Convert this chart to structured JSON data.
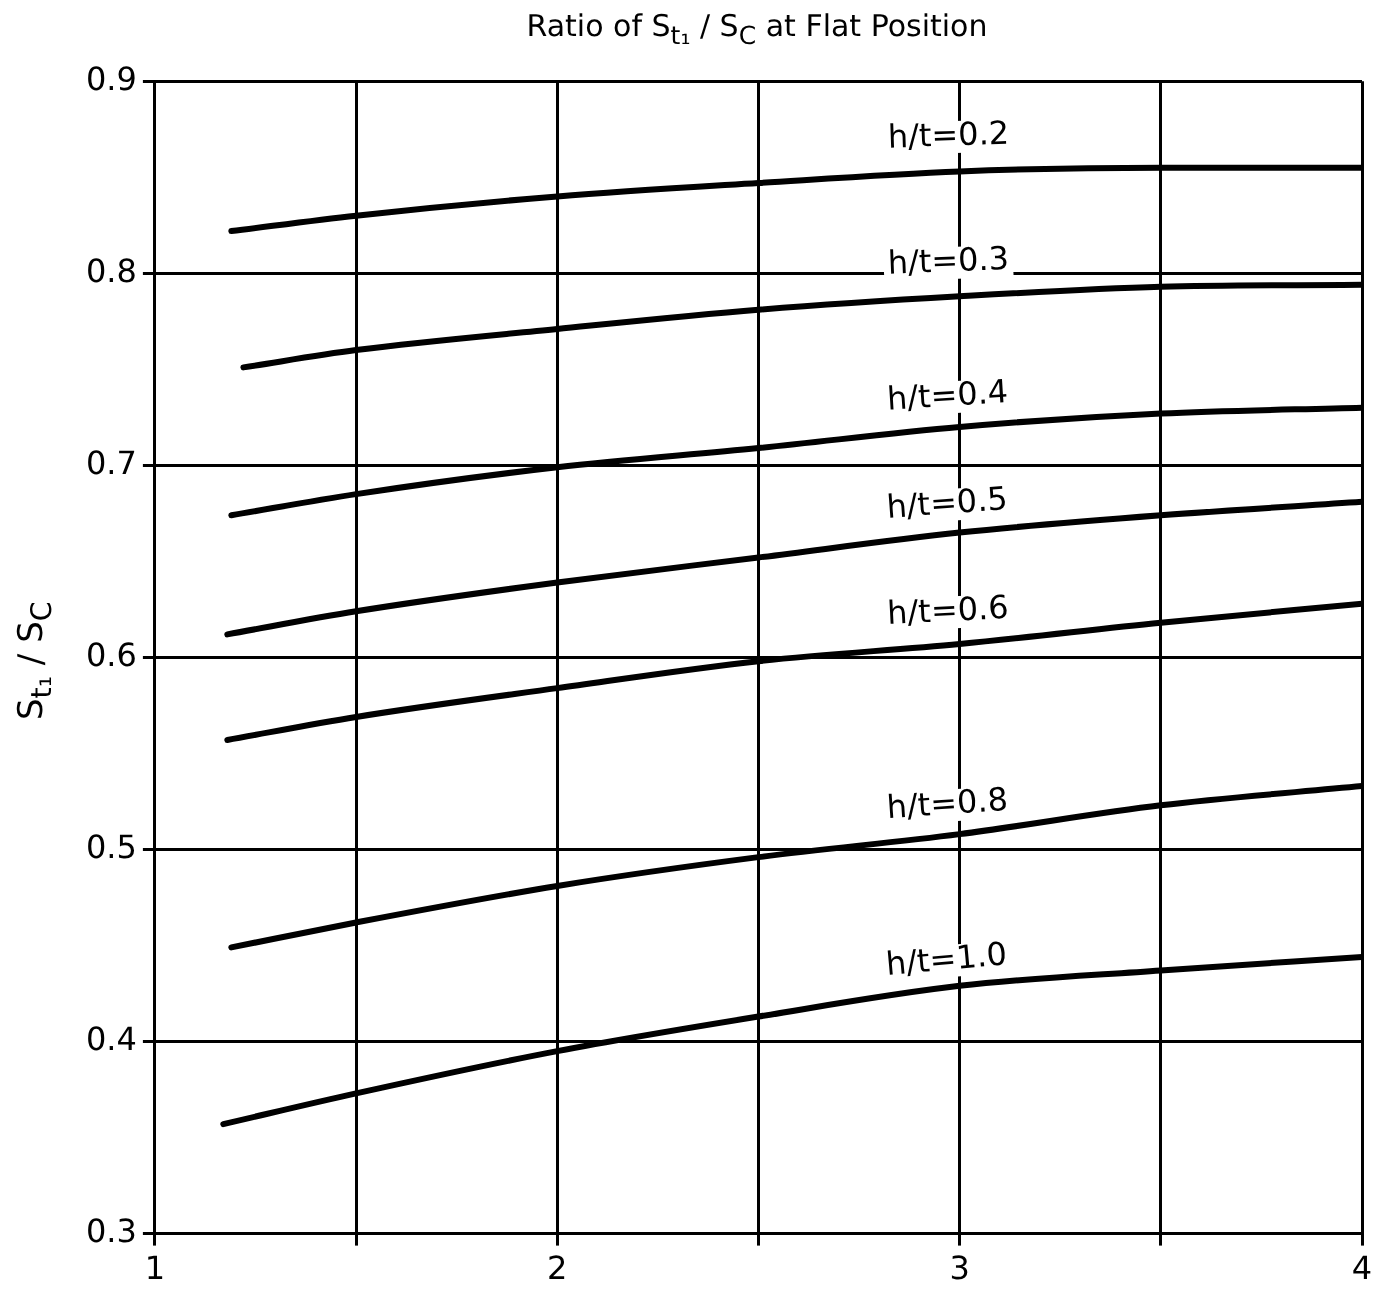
{
  "chart_data": {
    "type": "line",
    "title": "Ratio of S$_{t₁}$ / S$_{C}$  at Flat Position",
    "ylabel": "S$_{t₁}$ / S$_{C}$",
    "xlim": [
      1,
      4
    ],
    "ylim": [
      0.3,
      0.9
    ],
    "xticks": [
      1,
      {
        "value": 1.5,
        "label": null
      },
      2,
      {
        "value": 2.5,
        "label": null
      },
      3,
      {
        "value": 3.5,
        "label": null
      },
      4
    ],
    "yticks": [
      0.3,
      0.4,
      0.5,
      0.6,
      0.7,
      0.8,
      0.9
    ],
    "grid": true,
    "legend": false,
    "marker": "none",
    "line_style": "solid",
    "series": [
      {
        "name": "h/t=0.2",
        "color": "#000000",
        "x": [
          1.19,
          1.5,
          2,
          2.5,
          3,
          3.5,
          4
        ],
        "values": [
          0.822,
          0.83,
          0.84,
          0.847,
          0.853,
          0.855,
          0.855
        ]
      },
      {
        "name": "h/t=0.3",
        "color": "#000000",
        "x": [
          1.22,
          1.5,
          2,
          2.5,
          3,
          3.5,
          4
        ],
        "values": [
          0.751,
          0.76,
          0.771,
          0.781,
          0.788,
          0.793,
          0.794
        ]
      },
      {
        "name": "h/t=0.4",
        "color": "#000000",
        "x": [
          1.19,
          1.5,
          2,
          2.5,
          3,
          3.5,
          4
        ],
        "values": [
          0.674,
          0.685,
          0.699,
          0.709,
          0.72,
          0.727,
          0.73
        ]
      },
      {
        "name": "h/t=0.5",
        "color": "#000000",
        "x": [
          1.18,
          1.5,
          2,
          2.5,
          3,
          3.5,
          4
        ],
        "values": [
          0.612,
          0.624,
          0.639,
          0.652,
          0.665,
          0.674,
          0.681
        ]
      },
      {
        "name": "h/t=0.6",
        "color": "#000000",
        "x": [
          1.18,
          1.5,
          2,
          2.5,
          3,
          3.5,
          4
        ],
        "values": [
          0.557,
          0.569,
          0.584,
          0.598,
          0.607,
          0.618,
          0.628
        ]
      },
      {
        "name": "h/t=0.8",
        "color": "#000000",
        "x": [
          1.19,
          1.5,
          2,
          2.5,
          3,
          3.5,
          4
        ],
        "values": [
          0.449,
          0.462,
          0.481,
          0.496,
          0.508,
          0.523,
          0.533
        ]
      },
      {
        "name": "h/t=1.0",
        "color": "#000000",
        "x": [
          1.17,
          1.5,
          2,
          2.5,
          3,
          3.5,
          4
        ],
        "values": [
          0.357,
          0.373,
          0.395,
          0.413,
          0.429,
          0.437,
          0.444
        ]
      }
    ]
  }
}
